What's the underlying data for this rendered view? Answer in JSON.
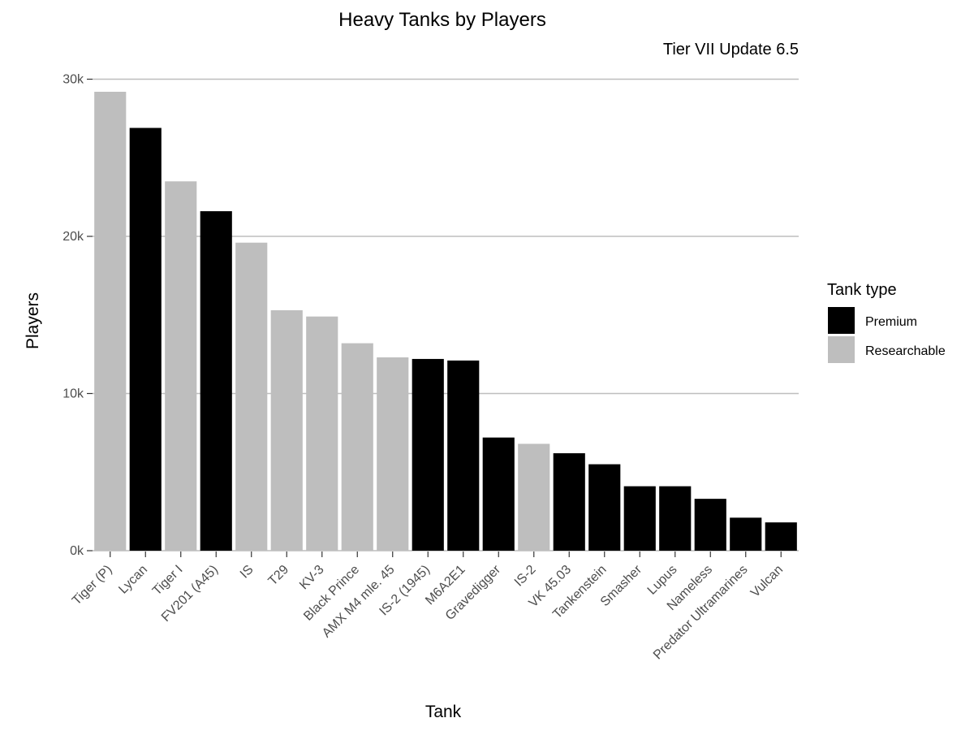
{
  "chart_data": {
    "type": "bar",
    "title": "Heavy Tanks by Players",
    "subtitle": "Tier VII Update 6.5",
    "xlabel": "Tank",
    "ylabel": "Players",
    "ylim": [
      0,
      30000
    ],
    "y_ticks": [
      0,
      10000,
      20000,
      30000
    ],
    "y_tick_labels": [
      "0k",
      "10k",
      "20k",
      "30k"
    ],
    "grid": "horizontal major",
    "legend": {
      "title": "Tank type",
      "position": "right",
      "entries": [
        {
          "label": "Premium",
          "color": "#000000"
        },
        {
          "label": "Researchable",
          "color": "#bebebe"
        }
      ]
    },
    "categories": [
      "Tiger (P)",
      "Lycan",
      "Tiger I",
      "FV201 (A45)",
      "IS",
      "T29",
      "KV-3",
      "Black Prince",
      "AMX M4 mle. 45",
      "IS-2 (1945)",
      "M6A2E1",
      "Gravedigger",
      "IS-2",
      "VK 45.03",
      "Tankenstein",
      "Smasher",
      "Lupus",
      "Nameless",
      "Predator Ultramarines",
      "Vulcan"
    ],
    "values": [
      29200,
      26900,
      23500,
      21600,
      19600,
      15300,
      14900,
      13200,
      12300,
      12200,
      12100,
      7200,
      6800,
      6200,
      5500,
      4100,
      4100,
      3300,
      2100,
      1800
    ],
    "tank_type": [
      "Researchable",
      "Premium",
      "Researchable",
      "Premium",
      "Researchable",
      "Researchable",
      "Researchable",
      "Researchable",
      "Researchable",
      "Premium",
      "Premium",
      "Premium",
      "Researchable",
      "Premium",
      "Premium",
      "Premium",
      "Premium",
      "Premium",
      "Premium",
      "Premium"
    ]
  }
}
